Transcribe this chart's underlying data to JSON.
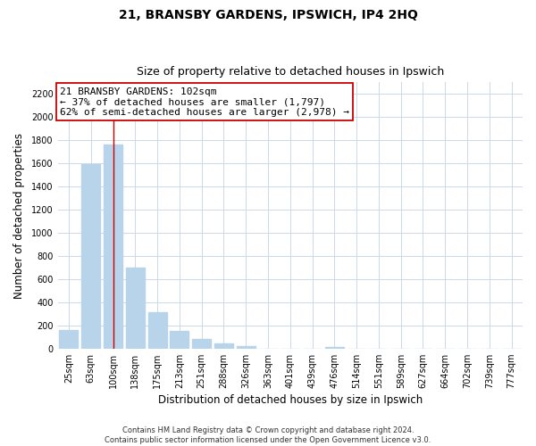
{
  "title": "21, BRANSBY GARDENS, IPSWICH, IP4 2HQ",
  "subtitle": "Size of property relative to detached houses in Ipswich",
  "xlabel": "Distribution of detached houses by size in Ipswich",
  "ylabel": "Number of detached properties",
  "bar_labels": [
    "25sqm",
    "63sqm",
    "100sqm",
    "138sqm",
    "175sqm",
    "213sqm",
    "251sqm",
    "288sqm",
    "326sqm",
    "363sqm",
    "401sqm",
    "439sqm",
    "476sqm",
    "514sqm",
    "551sqm",
    "589sqm",
    "627sqm",
    "664sqm",
    "702sqm",
    "739sqm",
    "777sqm"
  ],
  "bar_values": [
    160,
    1590,
    1760,
    700,
    315,
    155,
    80,
    45,
    20,
    0,
    0,
    0,
    10,
    0,
    0,
    0,
    0,
    0,
    0,
    0,
    0
  ],
  "bar_color": "#b8d4ea",
  "vline_index": 2,
  "vline_color": "#cc0000",
  "annotation_line1": "21 BRANSBY GARDENS: 102sqm",
  "annotation_line2": "← 37% of detached houses are smaller (1,797)",
  "annotation_line3": "62% of semi-detached houses are larger (2,978) →",
  "ylim": [
    0,
    2300
  ],
  "yticks": [
    0,
    200,
    400,
    600,
    800,
    1000,
    1200,
    1400,
    1600,
    1800,
    2000,
    2200
  ],
  "footer_line1": "Contains HM Land Registry data © Crown copyright and database right 2024.",
  "footer_line2": "Contains public sector information licensed under the Open Government Licence v3.0.",
  "bg_color": "#ffffff",
  "grid_color": "#ccd8e8",
  "title_fontsize": 10,
  "subtitle_fontsize": 9,
  "axis_label_fontsize": 8.5,
  "tick_fontsize": 7,
  "annotation_fontsize": 8
}
